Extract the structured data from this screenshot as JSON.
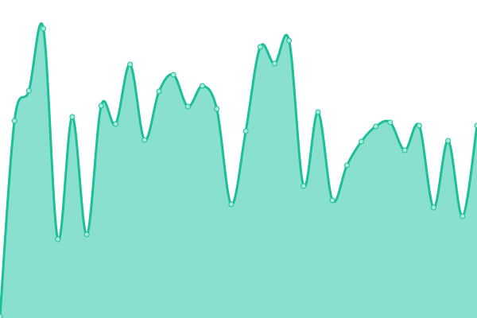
{
  "chart_data": {
    "type": "area",
    "title": "",
    "xlabel": "",
    "ylabel": "",
    "x": [
      0,
      1,
      2,
      3,
      4,
      5,
      6,
      7,
      8,
      9,
      10,
      11,
      12,
      13,
      14,
      15,
      16,
      17,
      18,
      19,
      20,
      21,
      22,
      23,
      24,
      25,
      26,
      27,
      28,
      29,
      30,
      31,
      32,
      33
    ],
    "values": [
      2,
      248,
      286,
      364,
      99,
      253,
      105,
      267,
      244,
      319,
      224,
      285,
      306,
      266,
      292,
      263,
      143,
      235,
      341,
      320,
      349,
      166,
      259,
      148,
      192,
      222,
      241,
      246,
      211,
      242,
      139,
      223,
      128,
      242
    ],
    "ylim": [
      0,
      400
    ],
    "grid": false,
    "axes_visible": false,
    "smooth": true,
    "markers": true,
    "colors": {
      "line": "#1dbf98",
      "fill": "#89e0cf",
      "marker_fill": "#a6ead9"
    }
  }
}
